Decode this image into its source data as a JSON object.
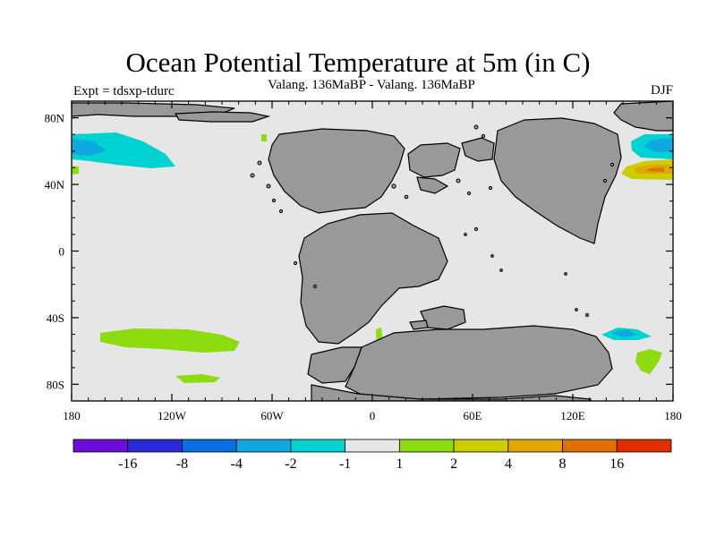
{
  "title": "Ocean Potential Temperature at 5m (in C)",
  "subtitle": "Valang. 136MaBP - Valang.  136MaBP",
  "experiment": "Expt = tdsxp-tdurc",
  "season": "DJF",
  "map": {
    "lon_range": [
      -180,
      180
    ],
    "lat_range": [
      -90,
      90
    ],
    "ocean_color": "#e6e6e6",
    "land_color": "#999999",
    "coast_color": "#000000",
    "x_ticks": [
      {
        "lon": -180,
        "label": "180"
      },
      {
        "lon": -120,
        "label": "120W"
      },
      {
        "lon": -60,
        "label": "60W"
      },
      {
        "lon": 0,
        "label": "0"
      },
      {
        "lon": 60,
        "label": "60E"
      },
      {
        "lon": 120,
        "label": "120E"
      },
      {
        "lon": 180,
        "label": "180"
      }
    ],
    "y_ticks": [
      {
        "lat": 80,
        "label": "80N"
      },
      {
        "lat": 40,
        "label": "40N"
      },
      {
        "lat": 0,
        "label": "0"
      },
      {
        "lat": -40,
        "label": "40S"
      },
      {
        "lat": -80,
        "label": "80S"
      }
    ]
  },
  "colorbar": {
    "colors": [
      "#6a0ed8",
      "#2a2ad8",
      "#0a6ee0",
      "#10a8e0",
      "#00d2d2",
      "#e6e6e6",
      "#8cdc10",
      "#cccc00",
      "#e0a800",
      "#e07000",
      "#e03000"
    ],
    "labels": [
      "-16",
      "-8",
      "-4",
      "-2",
      "-1",
      "1",
      "2",
      "4",
      "8",
      "16"
    ]
  }
}
